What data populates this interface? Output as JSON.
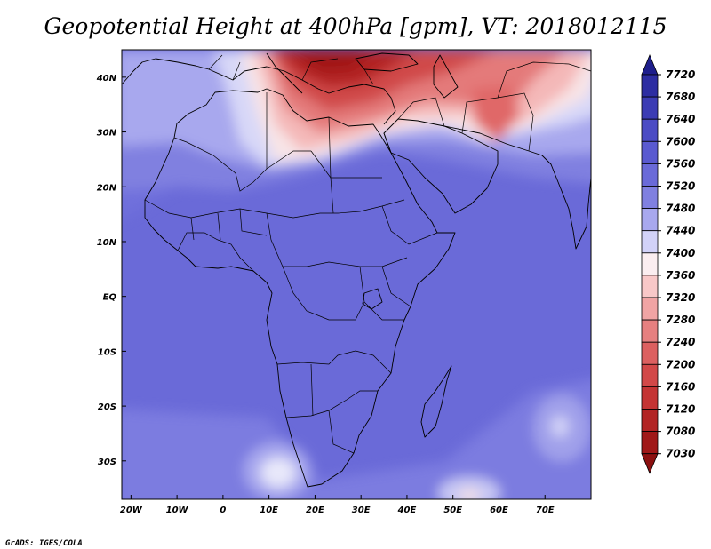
{
  "title": "Geopotential Height at 400hPa [gpm], VT: 2018012115",
  "credit": "GrADS: IGES/COLA",
  "map": {
    "lon_labels": [
      "20W",
      "10W",
      "0",
      "10E",
      "20E",
      "30E",
      "40E",
      "50E",
      "60E",
      "70E"
    ],
    "lon_values": [
      -20,
      -10,
      0,
      10,
      20,
      30,
      40,
      50,
      60,
      70
    ],
    "lat_labels": [
      "40N",
      "30N",
      "20N",
      "10N",
      "EQ",
      "10S",
      "20S",
      "30S"
    ],
    "lat_values": [
      40,
      30,
      20,
      10,
      0,
      -10,
      -20,
      -30
    ],
    "lon_range": [
      -22,
      80
    ],
    "lat_range": [
      -37,
      45
    ],
    "variable": "Geopotential Height",
    "level": "400hPa",
    "units": "gpm",
    "valid_time": "2018012115"
  },
  "colorbar": {
    "labels": [
      "7720",
      "7680",
      "7640",
      "7600",
      "7560",
      "7520",
      "7480",
      "7440",
      "7400",
      "7360",
      "7320",
      "7280",
      "7240",
      "7200",
      "7160",
      "7120",
      "7080",
      "7030"
    ],
    "colors": [
      "#1e1e8c",
      "#2d2da2",
      "#3c3cb4",
      "#4b4bc4",
      "#5a5ad0",
      "#6a6ad8",
      "#8080e0",
      "#a8a8ee",
      "#d2d2f8",
      "#fbeef0",
      "#f8c8c8",
      "#f0a4a4",
      "#e68080",
      "#dc6060",
      "#d24848",
      "#c43434",
      "#b22424",
      "#a01818",
      "#8c1010"
    ]
  }
}
